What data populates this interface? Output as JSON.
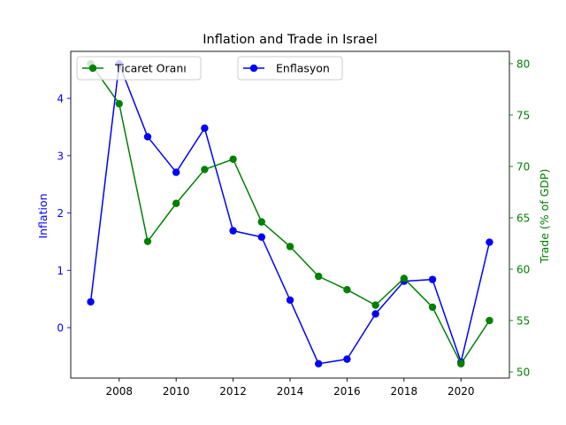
{
  "chart_data": {
    "type": "line",
    "title": "Inflation and Trade in Israel",
    "xlabel": "",
    "ylabel_left": "Inflation",
    "ylabel_right": "Trade (% of GDP)",
    "x": [
      2007,
      2008,
      2009,
      2010,
      2011,
      2012,
      2013,
      2014,
      2015,
      2016,
      2017,
      2018,
      2019,
      2020,
      2021
    ],
    "xlim": [
      2006.3,
      2021.7
    ],
    "ylim_left": [
      -0.88,
      4.82
    ],
    "ylim_right": [
      49.4,
      81.2
    ],
    "xticks": [
      2008,
      2010,
      2012,
      2014,
      2016,
      2018,
      2020
    ],
    "yticks_left": [
      0,
      1,
      2,
      3,
      4
    ],
    "yticks_right": [
      50,
      55,
      60,
      65,
      70,
      75,
      80
    ],
    "grid": false,
    "series": [
      {
        "name": "Enflasyon",
        "axis": "left",
        "color": "#0000ff",
        "values": [
          0.45,
          4.6,
          3.33,
          2.71,
          3.48,
          1.69,
          1.58,
          0.48,
          -0.63,
          -0.55,
          0.24,
          0.81,
          0.84,
          -0.6,
          1.49
        ]
      },
      {
        "name": "Ticaret Oranı",
        "axis": "right",
        "color": "#008000",
        "values": [
          80.0,
          76.1,
          62.7,
          66.4,
          69.7,
          70.7,
          64.6,
          62.2,
          59.3,
          58.0,
          56.5,
          59.1,
          56.3,
          50.8,
          55.0
        ]
      }
    ],
    "legends": [
      {
        "label": "Ticaret Oranı",
        "series": 1,
        "position": "upper-left"
      },
      {
        "label": "Enflasyon",
        "series": 0,
        "position": "upper-center"
      }
    ]
  }
}
